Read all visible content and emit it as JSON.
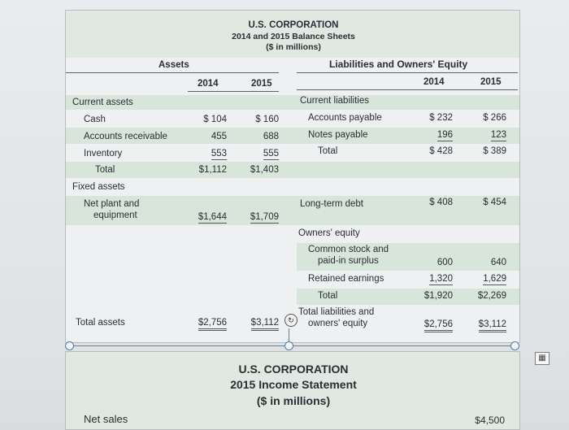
{
  "balance": {
    "title": "U.S. CORPORATION",
    "subtitle": "2014 and 2015 Balance Sheets",
    "units": "($ in millions)",
    "assets_header": "Assets",
    "liab_header": "Liabilities and Owners' Equity",
    "year1": "2014",
    "year2": "2015",
    "current_assets_label": "Current assets",
    "cash": {
      "label": "Cash",
      "v2014": "$ 104",
      "v2015": "$ 160"
    },
    "receivables": {
      "label": "Accounts receivable",
      "v2014": "455",
      "v2015": "688"
    },
    "inventory": {
      "label": "Inventory",
      "v2014": "553",
      "v2015": "555"
    },
    "ca_total": {
      "label": "Total",
      "v2014": "$1,112",
      "v2015": "$1,403"
    },
    "fixed_assets_label": "Fixed assets",
    "net_plant": {
      "label_line1": "Net plant and",
      "label_line2": "equipment",
      "v2014": "$1,644",
      "v2015": "$1,709"
    },
    "total_assets": {
      "label": "Total assets",
      "v2014": "$2,756",
      "v2015": "$3,112"
    },
    "current_liab_label": "Current liabilities",
    "payable": {
      "label": "Accounts payable",
      "v2014": "$ 232",
      "v2015": "$ 266"
    },
    "notes": {
      "label": "Notes payable",
      "v2014": "196",
      "v2015": "123"
    },
    "cl_total": {
      "label": "Total",
      "v2014": "$ 428",
      "v2015": "$ 389"
    },
    "ltd": {
      "label": "Long-term debt",
      "v2014": "$ 408",
      "v2015": "$ 454"
    },
    "equity_label": "Owners' equity",
    "common": {
      "label_line1": "Common stock and",
      "label_line2": "paid-in surplus",
      "v2014": "600",
      "v2015": "640"
    },
    "retained": {
      "label": "Retained earnings",
      "v2014": "1,320",
      "v2015": "1,629"
    },
    "eq_total": {
      "label": "Total",
      "v2014": "$1,920",
      "v2015": "$2,269"
    },
    "total_le": {
      "label_line1": "Total liabilities and",
      "label_line2": "owners' equity",
      "v2014": "$2,756",
      "v2015": "$3,112"
    }
  },
  "income": {
    "title": "U.S. CORPORATION",
    "subtitle": "2015 Income Statement",
    "units": "($ in millions)",
    "net_sales_label": "Net sales",
    "net_sales_value": "$4,500"
  },
  "icons": {
    "corner": "image-icon",
    "rotate": "rotate-icon"
  }
}
